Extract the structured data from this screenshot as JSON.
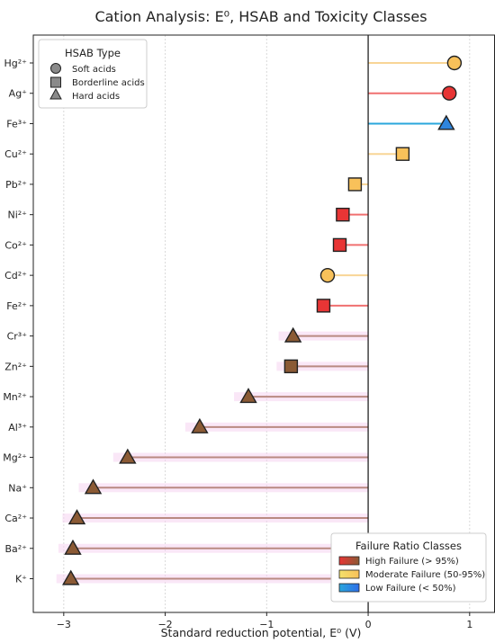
{
  "chart_data": {
    "type": "lollipop",
    "title": "Cation Analysis: E⁰, HSAB and Toxicity Classes",
    "xlabel": "Standard reduction potential, E⁰ (V)",
    "ylabel": "",
    "xlim": [
      -3.3,
      1.25
    ],
    "xticks": [
      -3,
      -2,
      -1,
      0,
      1
    ],
    "xtick_labels": [
      "−3",
      "−2",
      "−1",
      "0",
      "1"
    ],
    "grid": "vertical",
    "categories": [
      {
        "label": "Hg²⁺",
        "e0": 0.85,
        "hsab": "soft",
        "failure": "moderate"
      },
      {
        "label": "Ag⁺",
        "e0": 0.8,
        "hsab": "soft",
        "failure": "high"
      },
      {
        "label": "Fe³⁺",
        "e0": 0.77,
        "hsab": "hard",
        "failure": "low"
      },
      {
        "label": "Cu²⁺",
        "e0": 0.34,
        "hsab": "borderline",
        "failure": "moderate"
      },
      {
        "label": "Pb²⁺",
        "e0": -0.13,
        "hsab": "borderline",
        "failure": "moderate"
      },
      {
        "label": "Ni²⁺",
        "e0": -0.25,
        "hsab": "borderline",
        "failure": "high"
      },
      {
        "label": "Co²⁺",
        "e0": -0.28,
        "hsab": "borderline",
        "failure": "high"
      },
      {
        "label": "Cd²⁺",
        "e0": -0.4,
        "hsab": "soft",
        "failure": "moderate"
      },
      {
        "label": "Fe²⁺",
        "e0": -0.44,
        "hsab": "borderline",
        "failure": "high"
      },
      {
        "label": "Cr³⁺",
        "e0": -0.74,
        "hsab": "hard",
        "failure": "brown"
      },
      {
        "label": "Zn²⁺",
        "e0": -0.76,
        "hsab": "borderline",
        "failure": "brown"
      },
      {
        "label": "Mn²⁺",
        "e0": -1.18,
        "hsab": "hard",
        "failure": "brown"
      },
      {
        "label": "Al³⁺",
        "e0": -1.66,
        "hsab": "hard",
        "failure": "brown"
      },
      {
        "label": "Mg²⁺",
        "e0": -2.37,
        "hsab": "hard",
        "failure": "brown"
      },
      {
        "label": "Na⁺",
        "e0": -2.71,
        "hsab": "hard",
        "failure": "brown"
      },
      {
        "label": "Ca²⁺",
        "e0": -2.87,
        "hsab": "hard",
        "failure": "brown"
      },
      {
        "label": "Ba²⁺",
        "e0": -2.91,
        "hsab": "hard",
        "failure": "brown"
      },
      {
        "label": "K⁺",
        "e0": -2.93,
        "hsab": "hard",
        "failure": "brown"
      }
    ],
    "colors": {
      "soft_marker": "#F8C15A",
      "high": "#E83535",
      "moderate": "#F8C15A",
      "low": "#2E86DE",
      "brown": "#8B5A35",
      "stem_high": "#F07070",
      "stem_moderate": "#F8D596",
      "stem_low": "#2AA7DC",
      "stem_brown": "#B98A82",
      "glow": "#F6D3F0"
    },
    "hsab_legend": {
      "title": "HSAB Type",
      "items": [
        {
          "shape": "circle",
          "label": "Soft acids"
        },
        {
          "shape": "square",
          "label": "Borderline acids"
        },
        {
          "shape": "triangle",
          "label": "Hard acids"
        }
      ]
    },
    "failure_legend": {
      "title": "Failure Ratio Classes",
      "items": [
        {
          "key": "high",
          "label": "High Failure (> 95%)",
          "colors": [
            "#E83535",
            "#8B5A35"
          ]
        },
        {
          "key": "moderate",
          "label": "Moderate Failure (50-95%)",
          "colors": [
            "#F3E06A",
            "#F8C15A"
          ]
        },
        {
          "key": "low",
          "label": "Low Failure (< 50%)",
          "colors": [
            "#2AA7DC",
            "#2E6EE8"
          ]
        }
      ]
    }
  }
}
